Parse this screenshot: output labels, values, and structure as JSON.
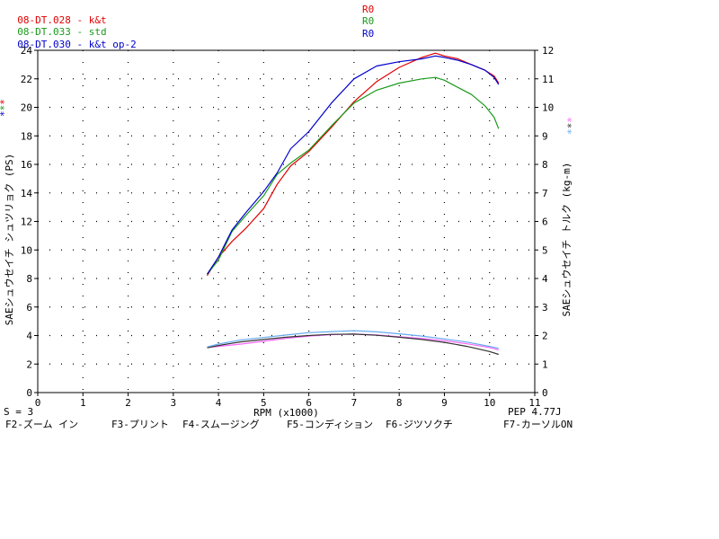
{
  "header": {
    "legend": [
      {
        "file": "08-DT.028",
        "sep": " - ",
        "desc": "k&t",
        "code": "R0",
        "color": "#e00000"
      },
      {
        "file": "08-DT.033",
        "sep": " - ",
        "desc": "std",
        "code": "R0",
        "color": "#1a9a1a"
      },
      {
        "file": "08-DT.030",
        "sep": " - ",
        "desc": "k&t op-2",
        "code": "R0",
        "color": "#0000cc"
      }
    ]
  },
  "chart_data": {
    "type": "line",
    "xlabel": "RPM (x1000)",
    "ylabel_left": "SAEシュウセイチ シュツリョク (PS)",
    "ylabel_right": "SAEシュウセイチ トルク (kg-m)",
    "xlim": [
      0,
      11
    ],
    "ylim_left": [
      0,
      24
    ],
    "ylim_right": [
      0,
      12
    ],
    "x_ticks": [
      0,
      1,
      2,
      3,
      4,
      5,
      6,
      7,
      8,
      9,
      10,
      11
    ],
    "y_left_ticks": [
      0,
      2,
      4,
      6,
      8,
      10,
      12,
      14,
      16,
      18,
      20,
      22,
      24
    ],
    "y_right_ticks": [
      0,
      1,
      2,
      3,
      4,
      5,
      6,
      7,
      8,
      9,
      10,
      11,
      12
    ],
    "grid": true,
    "power_series": [
      {
        "color": "#e00000",
        "axis": "left",
        "x": [
          3.75,
          4.0,
          4.3,
          4.6,
          5.0,
          5.3,
          5.6,
          6.0,
          6.5,
          7.0,
          7.5,
          8.0,
          8.5,
          8.8,
          9.0,
          9.3,
          9.6,
          9.9,
          10.1,
          10.2
        ],
        "y": [
          8.2,
          9.5,
          10.6,
          11.5,
          12.9,
          14.6,
          15.9,
          16.9,
          18.6,
          20.4,
          21.8,
          22.8,
          23.5,
          23.8,
          23.6,
          23.4,
          23.0,
          22.6,
          22.2,
          21.7
        ]
      },
      {
        "color": "#1a9a1a",
        "axis": "left",
        "x": [
          3.75,
          4.0,
          4.3,
          4.6,
          5.0,
          5.3,
          5.6,
          6.0,
          6.5,
          7.0,
          7.5,
          8.0,
          8.5,
          8.8,
          9.0,
          9.3,
          9.6,
          9.9,
          10.1,
          10.2
        ],
        "y": [
          8.3,
          9.3,
          11.3,
          12.4,
          13.8,
          15.3,
          16.1,
          17.0,
          18.7,
          20.3,
          21.2,
          21.7,
          22.0,
          22.1,
          21.9,
          21.4,
          20.9,
          20.1,
          19.3,
          18.5
        ]
      },
      {
        "color": "#0000cc",
        "axis": "left",
        "x": [
          3.75,
          4.0,
          4.3,
          4.6,
          5.0,
          5.3,
          5.6,
          6.0,
          6.5,
          7.0,
          7.5,
          8.0,
          8.5,
          8.8,
          9.0,
          9.3,
          9.6,
          9.9,
          10.1,
          10.2
        ],
        "y": [
          8.3,
          9.5,
          11.4,
          12.6,
          14.1,
          15.4,
          17.1,
          18.3,
          20.3,
          22.0,
          22.9,
          23.2,
          23.4,
          23.6,
          23.5,
          23.3,
          23.0,
          22.6,
          22.1,
          21.6
        ]
      }
    ],
    "torque_series": [
      {
        "color": "#ff66ff",
        "axis": "right",
        "x": [
          3.75,
          4.0,
          4.5,
          5.0,
          5.5,
          6.0,
          6.5,
          7.0,
          7.5,
          8.0,
          8.5,
          9.0,
          9.5,
          10.0,
          10.2
        ],
        "y": [
          1.58,
          1.62,
          1.7,
          1.8,
          1.9,
          1.98,
          2.03,
          2.05,
          2.02,
          1.96,
          1.9,
          1.82,
          1.71,
          1.58,
          1.5
        ]
      },
      {
        "color": "#333333",
        "axis": "right",
        "x": [
          3.75,
          4.0,
          4.5,
          5.0,
          5.5,
          6.0,
          6.5,
          7.0,
          7.5,
          8.0,
          8.5,
          9.0,
          9.5,
          10.0,
          10.2
        ],
        "y": [
          1.57,
          1.65,
          1.78,
          1.86,
          1.94,
          2.0,
          2.04,
          2.05,
          2.01,
          1.94,
          1.86,
          1.76,
          1.62,
          1.44,
          1.34
        ]
      },
      {
        "color": "#66aaee",
        "axis": "right",
        "x": [
          3.75,
          4.0,
          4.5,
          5.0,
          5.5,
          6.0,
          6.5,
          7.0,
          7.5,
          8.0,
          8.5,
          9.0,
          9.5,
          10.0,
          10.2
        ],
        "y": [
          1.6,
          1.7,
          1.85,
          1.93,
          2.02,
          2.1,
          2.14,
          2.17,
          2.13,
          2.06,
          1.98,
          1.88,
          1.77,
          1.62,
          1.55
        ]
      }
    ]
  },
  "footer": {
    "s_value": "S = 3",
    "pep": "PEP 4.77J",
    "keys": [
      "F2-ズーム イン",
      "F3-プリント",
      "F4-スムージング",
      "F5-コンディション",
      "F6-ジツソクチ",
      "F7-カーソルON"
    ]
  },
  "markers": {
    "left": "***",
    "right": "***"
  }
}
